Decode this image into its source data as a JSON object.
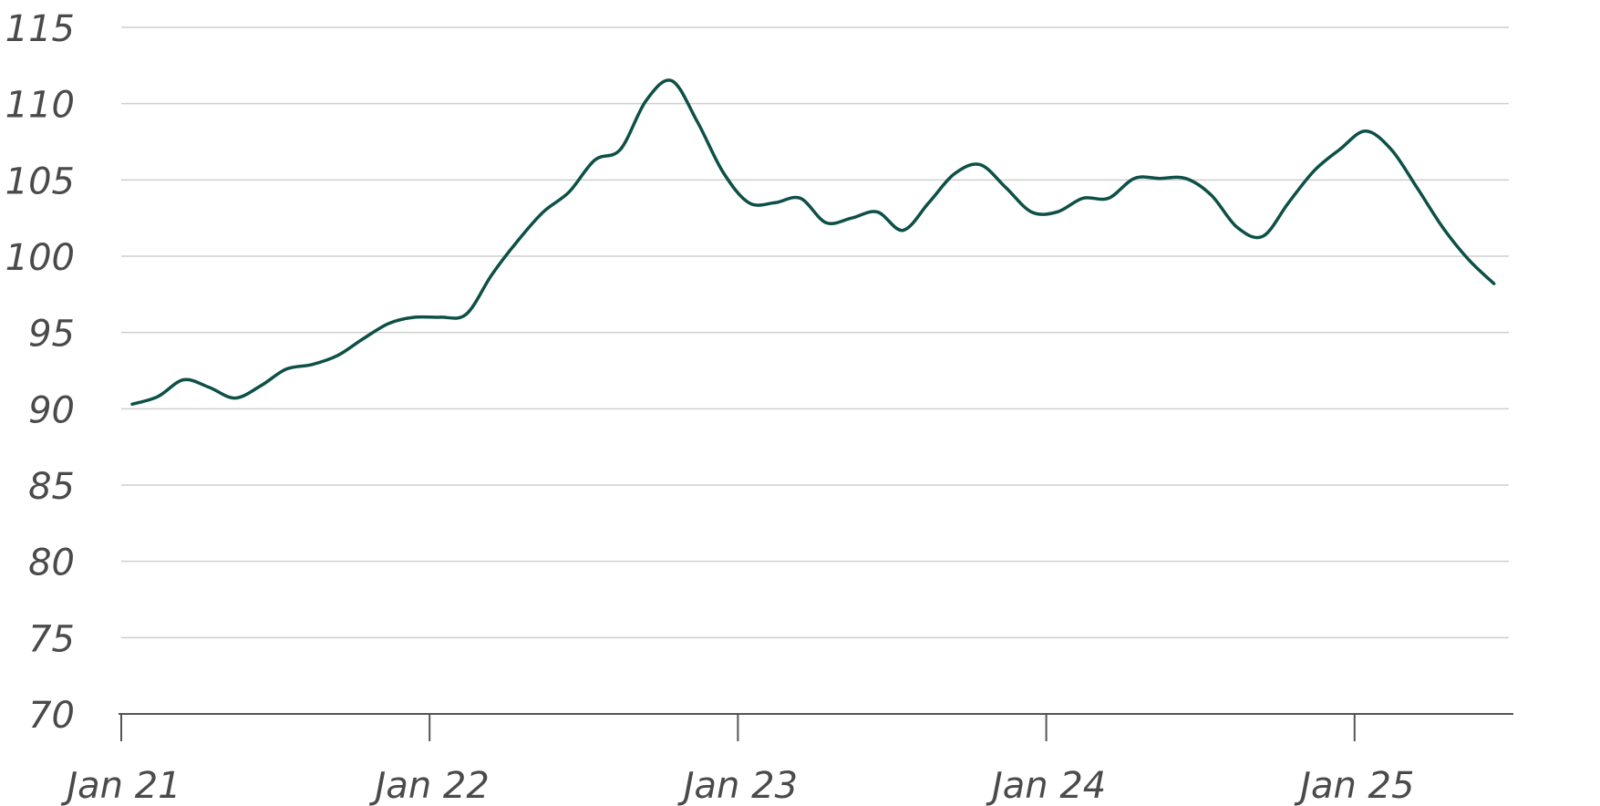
{
  "chart_data": {
    "type": "line",
    "title": "",
    "xlabel": "",
    "ylabel": "",
    "ylim": [
      70,
      115
    ],
    "y_ticks": [
      "70",
      "75",
      "80",
      "85",
      "90",
      "95",
      "100",
      "105",
      "110",
      "115"
    ],
    "x_ticks": [
      "Jan 21",
      "Jan 22",
      "Jan 23",
      "Jan 24",
      "Jan 25"
    ],
    "grid": true,
    "line_color": "#0d5047",
    "grid_color": "#cfcfcf",
    "axis_color": "#555555",
    "series": [
      {
        "x": [
          "2021-01",
          "2021-02",
          "2021-03",
          "2021-04",
          "2021-05",
          "2021-06",
          "2021-07",
          "2021-08",
          "2021-09",
          "2021-10",
          "2021-11",
          "2021-12",
          "2022-01",
          "2022-02",
          "2022-03",
          "2022-04",
          "2022-05",
          "2022-06",
          "2022-07",
          "2022-08",
          "2022-09",
          "2022-10",
          "2022-11",
          "2022-12",
          "2023-01",
          "2023-02",
          "2023-03",
          "2023-04",
          "2023-05",
          "2023-06",
          "2023-07",
          "2023-08",
          "2023-09",
          "2023-10",
          "2023-11",
          "2023-12",
          "2024-01",
          "2024-02",
          "2024-03",
          "2024-04",
          "2024-05",
          "2024-06",
          "2024-07",
          "2024-08",
          "2024-09",
          "2024-10",
          "2024-11",
          "2024-12",
          "2025-01",
          "2025-02",
          "2025-03",
          "2025-04",
          "2025-05",
          "2025-06"
        ],
        "values": [
          90.3,
          90.8,
          91.9,
          91.4,
          90.7,
          91.5,
          92.6,
          92.9,
          93.5,
          94.6,
          95.6,
          96.0,
          96.0,
          96.2,
          98.8,
          101.0,
          102.9,
          104.2,
          106.3,
          107.0,
          110.2,
          111.5,
          108.8,
          105.5,
          103.5,
          103.5,
          103.8,
          102.2,
          102.5,
          102.9,
          101.7,
          103.5,
          105.4,
          106.0,
          104.5,
          102.9,
          102.9,
          103.8,
          103.8,
          105.1,
          105.1,
          105.1,
          104.0,
          101.9,
          101.3,
          103.5,
          105.6,
          107.0,
          108.2,
          107.0,
          104.5,
          101.9,
          99.8,
          98.2
        ]
      }
    ]
  }
}
